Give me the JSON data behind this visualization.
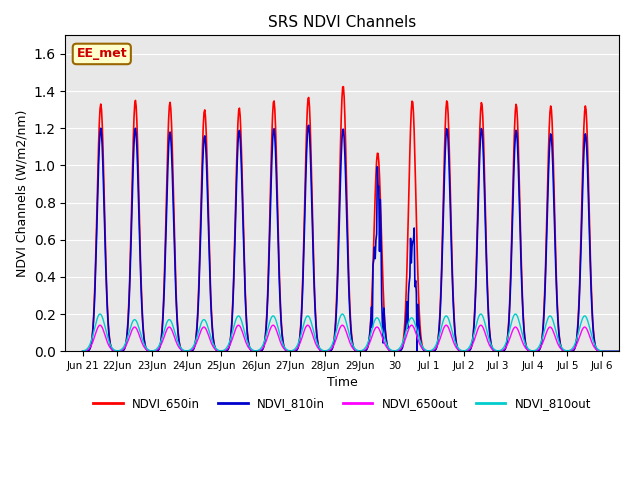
{
  "title": "SRS NDVI Channels",
  "xlabel": "Time",
  "ylabel": "NDVI Channels (W/m2/nm)",
  "ylim": [
    0,
    1.7
  ],
  "yticks": [
    0.0,
    0.2,
    0.4,
    0.6,
    0.8,
    1.0,
    1.2,
    1.4,
    1.6
  ],
  "colors": {
    "NDVI_650in": "#ff0000",
    "NDVI_810in": "#0000cc",
    "NDVI_650out": "#ff00ff",
    "NDVI_810out": "#00cccc"
  },
  "annotation_text": "EE_met",
  "annotation_color": "#cc0000",
  "annotation_bg": "#ffffcc",
  "background_color": "#e8e8e8",
  "peaks_650in": [
    1.33,
    1.35,
    1.34,
    1.3,
    1.31,
    1.35,
    1.37,
    1.43,
    1.07,
    1.35,
    1.35,
    1.34,
    1.33,
    1.32,
    1.32
  ],
  "peaks_810in": [
    1.2,
    1.2,
    1.18,
    1.16,
    1.19,
    1.2,
    1.22,
    1.2,
    1.0,
    0.8,
    1.2,
    1.2,
    1.19,
    1.17,
    1.17
  ],
  "peaks_650out": [
    0.14,
    0.13,
    0.13,
    0.13,
    0.14,
    0.14,
    0.14,
    0.14,
    0.13,
    0.14,
    0.14,
    0.14,
    0.13,
    0.13,
    0.13
  ],
  "peaks_810out": [
    0.2,
    0.17,
    0.17,
    0.17,
    0.19,
    0.19,
    0.19,
    0.2,
    0.18,
    0.18,
    0.19,
    0.2,
    0.2,
    0.19,
    0.19
  ],
  "tick_labels": [
    "Jun 21",
    "22Jun",
    "23Jun",
    "24Jun",
    "25Jun",
    "26Jun",
    "27Jun",
    "28Jun",
    "29Jun",
    "30",
    "Jul 1",
    "Jul 2",
    "Jul 3",
    "Jul 4",
    "Jul 5",
    "Jul 6"
  ],
  "n_days": 16
}
